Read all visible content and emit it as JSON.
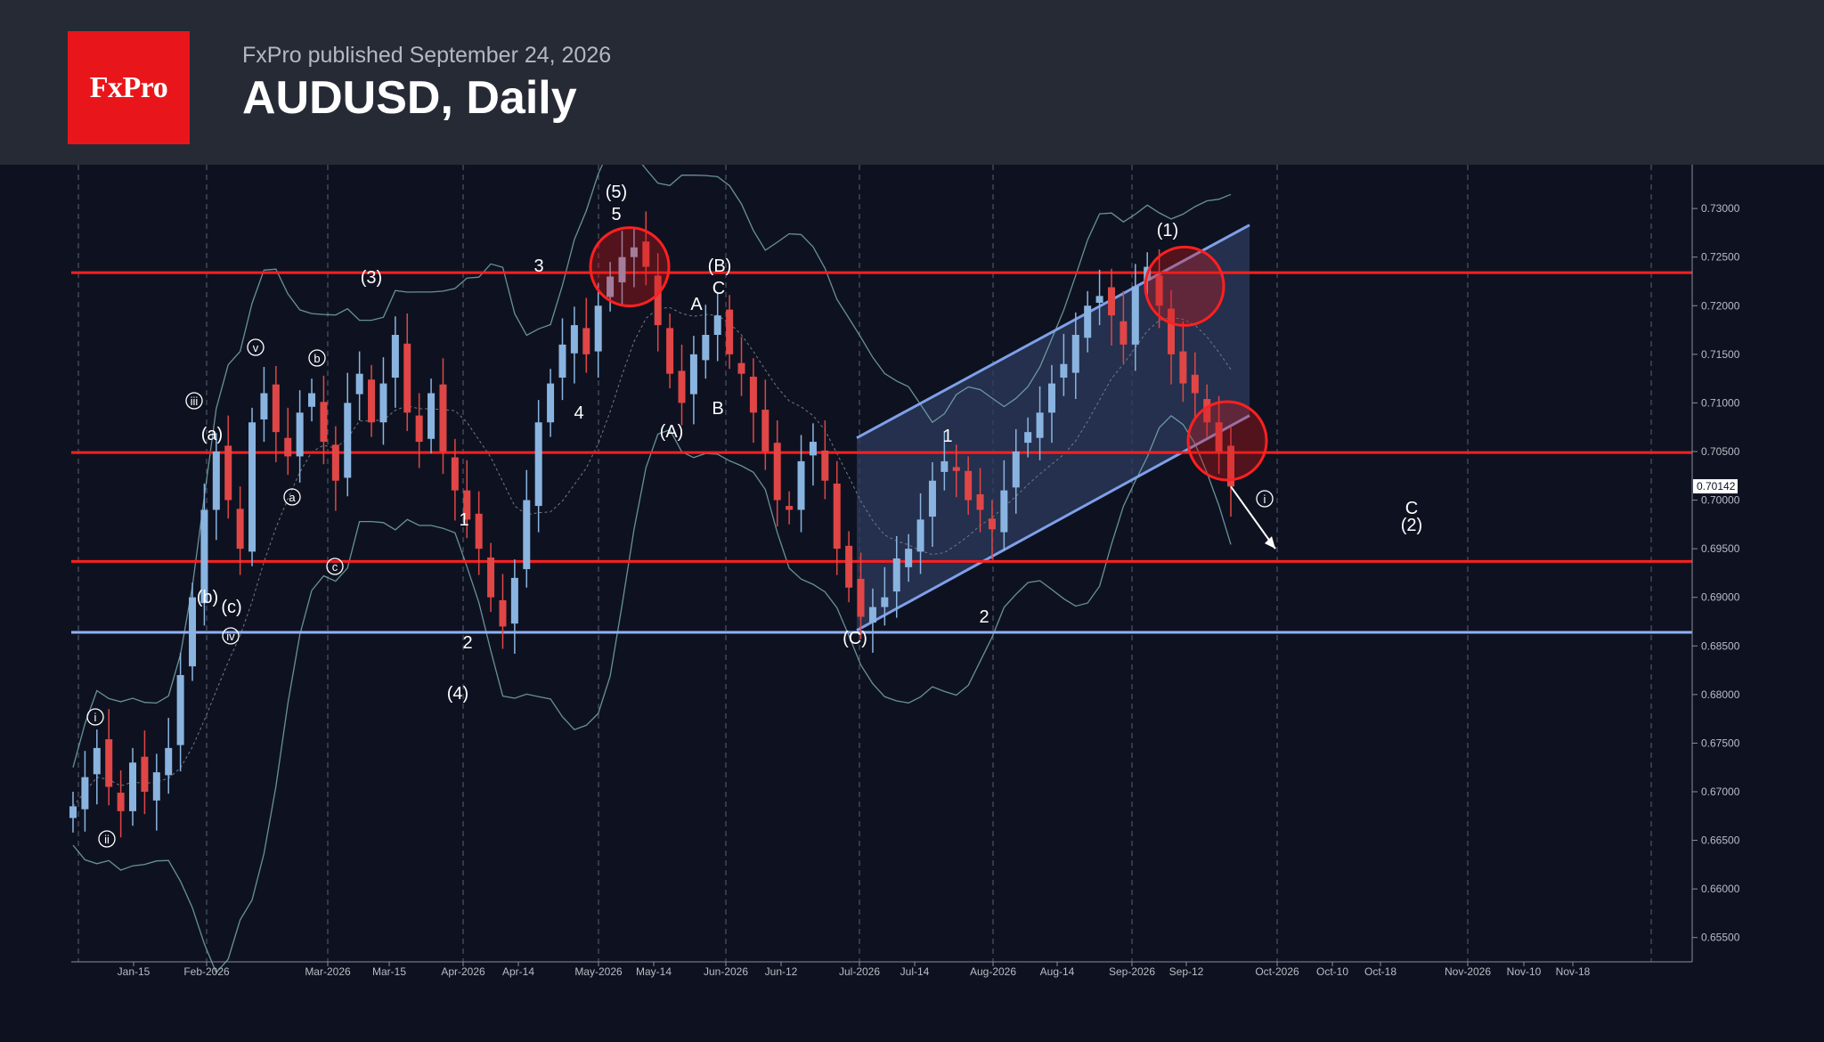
{
  "header": {
    "logo_text": "FxPro",
    "published": "FxPro published September 24, 2026",
    "title": "AUDUSD, Daily"
  },
  "colors": {
    "background": "#0e1220",
    "header": "#262a35",
    "logo": "#e8161b",
    "bull": "#8ab4e0",
    "bear": "#e04646",
    "resistance": "#ff2020",
    "support": "#8fb0ff",
    "channel": "#2c3b5c"
  },
  "chart_data": {
    "type": "candlestick",
    "symbol": "AUDUSD",
    "timeframe": "Daily",
    "ylim": [
      0.6525,
      0.7345
    ],
    "y_ticks": [
      "0.73000",
      "0.72500",
      "0.72000",
      "0.71500",
      "0.71000",
      "0.70500",
      "0.70000",
      "0.69500",
      "0.69000",
      "0.68500",
      "0.68000",
      "0.67500",
      "0.67000",
      "0.66500",
      "0.66000",
      "0.65500"
    ],
    "current_price": "0.70142",
    "x_ticks": [
      "Jan-15",
      "Feb-2026",
      "Mar-2026",
      "Mar-15",
      "Apr-2026",
      "Apr-14",
      "May-2026",
      "May-14",
      "Jun-2026",
      "Jun-12",
      "Jul-2026",
      "Jul-14",
      "Aug-2026",
      "Aug-14",
      "Sep-2026",
      "Sep-12",
      "Oct-2026",
      "Oct-10",
      "Oct-18",
      "Nov-2026",
      "Nov-10",
      "Nov-18"
    ],
    "horizontal_levels": [
      {
        "price": 0.7234,
        "kind": "resistance"
      },
      {
        "price": 0.7049,
        "kind": "resistance"
      },
      {
        "price": 0.6937,
        "kind": "resistance"
      },
      {
        "price": 0.6864,
        "kind": "support"
      }
    ],
    "price_path": [
      0.6685,
      0.6715,
      0.6745,
      0.6705,
      0.668,
      0.673,
      0.67,
      0.672,
      0.6745,
      0.682,
      0.69,
      0.699,
      0.705,
      0.7,
      0.695,
      0.708,
      0.711,
      0.707,
      0.7045,
      0.709,
      0.711,
      0.706,
      0.702,
      0.71,
      0.713,
      0.708,
      0.712,
      0.717,
      0.709,
      0.706,
      0.711,
      0.705,
      0.701,
      0.698,
      0.695,
      0.69,
      0.687,
      0.692,
      0.7,
      0.708,
      0.712,
      0.716,
      0.718,
      0.715,
      0.72,
      0.723,
      0.725,
      0.726,
      0.724,
      0.718,
      0.713,
      0.71,
      0.715,
      0.717,
      0.719,
      0.715,
      0.713,
      0.709,
      0.705,
      0.7,
      0.699,
      0.704,
      0.706,
      0.702,
      0.695,
      0.691,
      0.688,
      0.689,
      0.69,
      0.694,
      0.695,
      0.698,
      0.702,
      0.704,
      0.703,
      0.7,
      0.699,
      0.697,
      0.701,
      0.705,
      0.707,
      0.709,
      0.712,
      0.714,
      0.717,
      0.72,
      0.721,
      0.719,
      0.716,
      0.722,
      0.724,
      0.72,
      0.715,
      0.712,
      0.711,
      0.708,
      0.705,
      0.7014
    ],
    "channel": {
      "x": [
        "Jul-2026",
        "Oct-2026"
      ],
      "upper": [
        0.7064,
        0.7283
      ],
      "lower": [
        0.6866,
        0.7087
      ]
    },
    "projection": {
      "from": 0.7014,
      "to": 0.695
    },
    "wave_labels": [
      "i",
      "ii",
      "iii",
      "iv",
      "v",
      "(a)",
      "(b)",
      "(c)",
      "a",
      "b",
      "c",
      "1",
      "2",
      "3",
      "4",
      "5",
      "A",
      "B",
      "C",
      "(1)",
      "(2)",
      "(3)",
      "(4)",
      "(5)",
      "(A)",
      "(B)",
      "(C)",
      "1",
      "2"
    ],
    "projected_labels": {
      "wave_i": "i",
      "C": "C",
      "(2)": "(2)"
    }
  }
}
